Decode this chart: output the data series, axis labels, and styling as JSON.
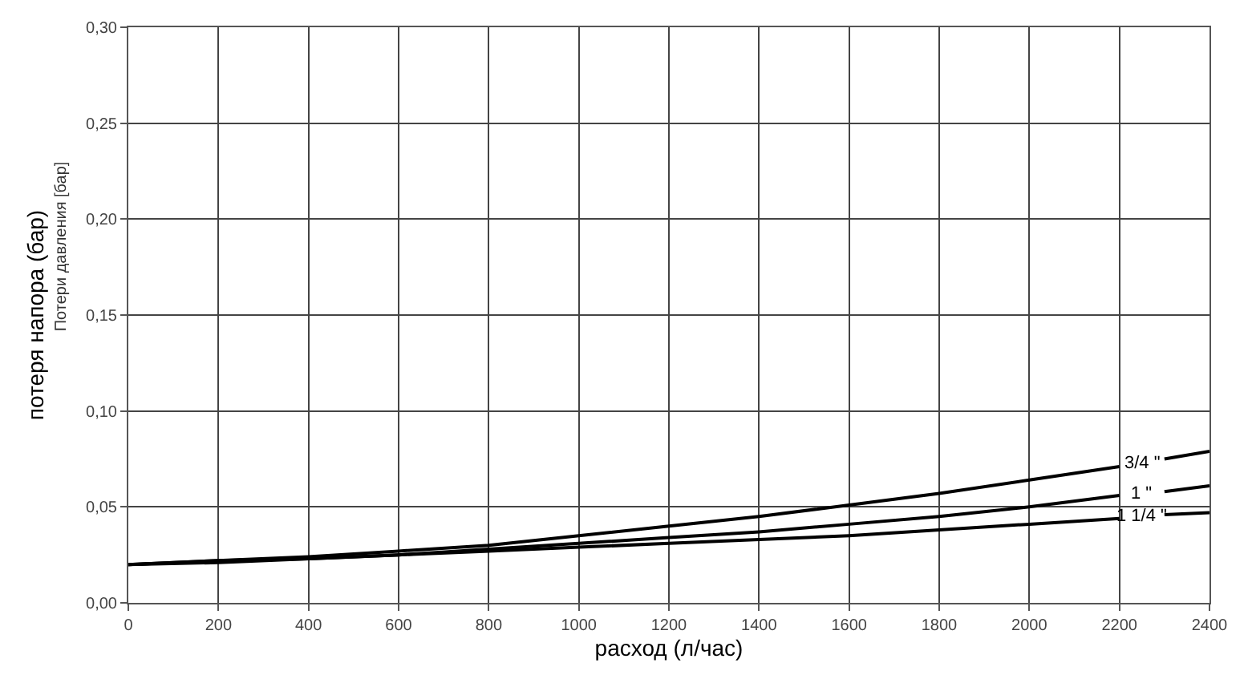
{
  "chart_data": {
    "type": "line",
    "xlabel": "расход (л/час)",
    "ylabel": "потеря напора (бар)",
    "annotations": [
      "Потери давления [бар]"
    ],
    "x": [
      0,
      200,
      400,
      600,
      800,
      1000,
      1200,
      1400,
      1600,
      1800,
      2000,
      2200,
      2250,
      2300,
      2400
    ],
    "series": [
      {
        "name": "3/4 \"",
        "color": "#000000",
        "values": [
          0.02,
          0.022,
          0.024,
          0.027,
          0.03,
          0.035,
          0.04,
          0.045,
          0.051,
          0.057,
          0.064,
          0.071,
          null,
          0.075,
          0.079
        ]
      },
      {
        "name": "1 \"",
        "color": "#000000",
        "values": [
          0.02,
          0.022,
          0.023,
          0.025,
          0.028,
          0.031,
          0.034,
          0.037,
          0.041,
          0.045,
          0.05,
          0.056,
          null,
          0.058,
          0.061
        ]
      },
      {
        "name": "1 1/4 \"",
        "color": "#000000",
        "values": [
          0.02,
          0.021,
          0.023,
          0.025,
          0.027,
          0.029,
          0.031,
          0.033,
          0.035,
          0.038,
          0.041,
          0.044,
          null,
          0.046,
          0.047
        ]
      }
    ],
    "xlim": [
      0,
      2400
    ],
    "xticks": [
      0,
      200,
      400,
      600,
      800,
      1000,
      1200,
      1400,
      1600,
      1800,
      2000,
      2200,
      2400
    ],
    "ylim": [
      0,
      0.3
    ],
    "yticks": [
      {
        "value": 0,
        "label": "0,00"
      },
      {
        "value": 0.05,
        "label": "0,05"
      },
      {
        "value": 0.1,
        "label": "0,10"
      },
      {
        "value": 0.15,
        "label": "0,15"
      },
      {
        "value": 0.2,
        "label": "0,20"
      },
      {
        "value": 0.25,
        "label": "0,25"
      },
      {
        "value": 0.3,
        "label": "0,30"
      }
    ],
    "grid": true,
    "legend": false,
    "marker": "none",
    "line_style": "solid"
  }
}
